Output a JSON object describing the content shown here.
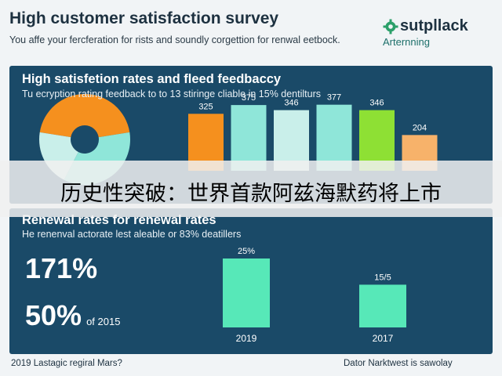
{
  "header": {
    "title": "High customer satisfaction survey",
    "subtitle": "You affe your fercferation for rists and soundly corgettion for renwal eetbock.",
    "brand_name": "sutpllack",
    "brand_sub": "Arternning"
  },
  "colors": {
    "panel": "#1a4a68",
    "orange": "#f5901e",
    "mint": "#8fe6d9",
    "green": "#8ee034",
    "light": "#c9efea",
    "peach": "#f7b26a",
    "overlay_text": "#000000"
  },
  "overlay": {
    "text": "历史性突破：世界首款阿兹海默药将上市"
  },
  "footer": {
    "left": "2019 Lastagic regiral Mars?",
    "right": "Dator Narktwest is sawolay"
  },
  "chart_data": [
    {
      "type": "bar",
      "title": "High satisfetion rates and fleed feedbaccy",
      "subtitle": "Tu ecryption rating feedback to to 13 stiringe cliable in 15% dentilturs",
      "categories": [
        "",
        "",
        "",
        "",
        "",
        ""
      ],
      "values": [
        325,
        375,
        346,
        377,
        346,
        204
      ],
      "data_labels": [
        "325",
        "375",
        "346",
        "377",
        "346",
        "204"
      ],
      "bar_colors": [
        "#f5901e",
        "#8fe6d9",
        "#c9efea",
        "#8fe6d9",
        "#8ee034",
        "#f7b26a"
      ],
      "donut": {
        "type": "pie",
        "values": [
          45,
          35,
          20
        ],
        "colors": [
          "#f5901e",
          "#8fe6d9",
          "#c9efea"
        ]
      },
      "ylim": [
        0,
        700
      ]
    },
    {
      "type": "bar",
      "title": "Renewal rates for renewal rates",
      "subtitle": "He renenval actorate lest aleable or 83% deatillers",
      "stats": [
        {
          "value": "171%",
          "note": ""
        },
        {
          "value": "50%",
          "note": "of 2015"
        }
      ],
      "categories": [
        "2019",
        "2017"
      ],
      "values": [
        25,
        15.5
      ],
      "data_labels": [
        "25%",
        "15/5"
      ],
      "bar_color": "#57e8b8",
      "ylim": [
        0,
        30
      ]
    }
  ]
}
